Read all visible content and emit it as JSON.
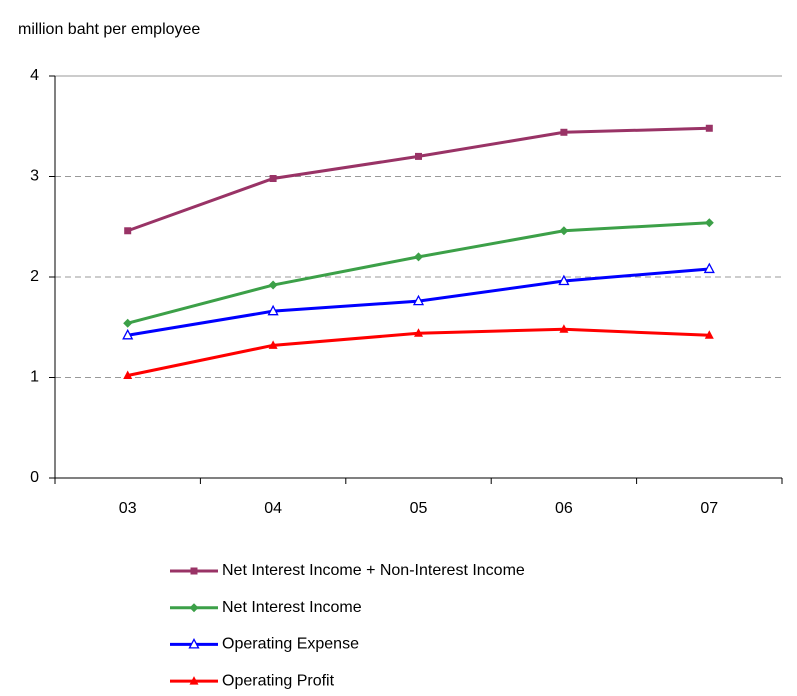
{
  "chart_data": {
    "type": "line",
    "y_axis_label": "million baht per employee",
    "categories": [
      "03",
      "04",
      "05",
      "06",
      "07"
    ],
    "series": [
      {
        "name": "Net Interest Income + Non-Interest Income",
        "color": "#993366",
        "marker": "square",
        "values": [
          2.46,
          2.98,
          3.2,
          3.44,
          3.48
        ]
      },
      {
        "name": "Net Interest Income",
        "color": "#3ca048",
        "marker": "diamond",
        "values": [
          1.54,
          1.92,
          2.2,
          2.46,
          2.54
        ]
      },
      {
        "name": "Operating Expense",
        "color": "#0000ff",
        "marker": "open-triangle",
        "values": [
          1.42,
          1.66,
          1.76,
          1.96,
          2.08
        ]
      },
      {
        "name": "Operating Profit",
        "color": "#ff0000",
        "marker": "triangle",
        "values": [
          1.02,
          1.32,
          1.44,
          1.48,
          1.42
        ]
      }
    ],
    "ylim": [
      0,
      4
    ],
    "yticks": [
      0,
      1,
      2,
      3,
      4
    ],
    "grid": true,
    "legend": "bottom"
  }
}
